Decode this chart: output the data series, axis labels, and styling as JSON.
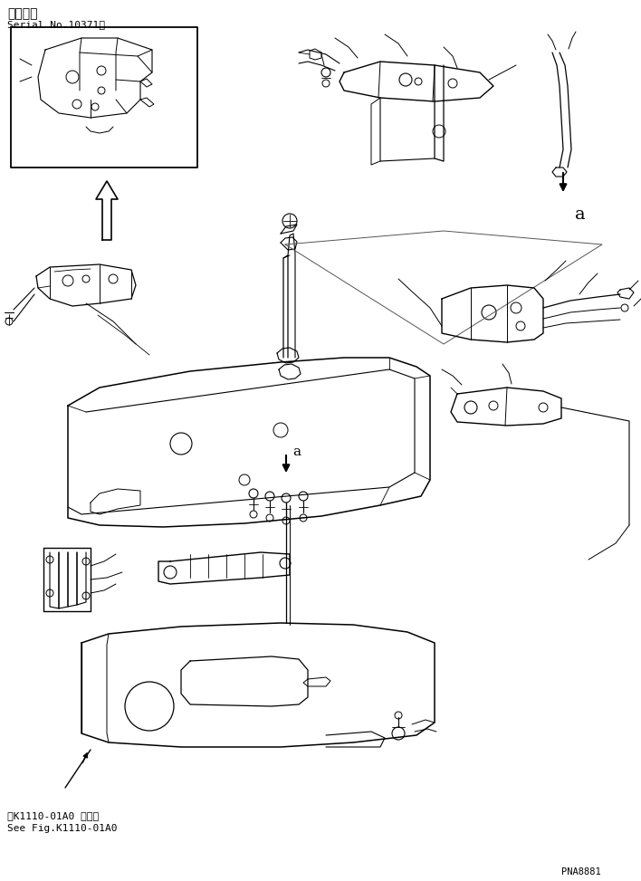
{
  "bg_color": "#ffffff",
  "line_color": "#000000",
  "title_line1": "適用号機",
  "title_line2": "Serial No.10371～",
  "bottom_ref_line1": "第K1110-01A0 図参照",
  "bottom_ref_line2": "See Fig.K1110-01A0",
  "page_code": "PNA8881",
  "label_a1": "a",
  "label_a2": "a",
  "fig_width": 7.08,
  "fig_height": 9.73,
  "dpi": 100
}
